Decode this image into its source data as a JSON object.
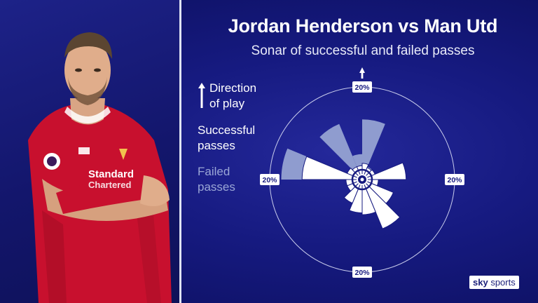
{
  "header": {
    "title": "Jordan Henderson vs Man Utd",
    "subtitle": "Sonar of successful and failed passes"
  },
  "legend": {
    "direction_line1": "Direction",
    "direction_line2": "of play",
    "successful_line1": "Successful",
    "successful_line2": "passes",
    "failed_line1": "Failed",
    "failed_line2": "passes"
  },
  "brand": {
    "sky": "sky",
    "sports": "sports"
  },
  "colors": {
    "successful": "#ffffff",
    "failed": "#8f9ccf",
    "background": "#161a80"
  },
  "chart_data": {
    "type": "polar-bar",
    "axis_label": "20%",
    "max_percent": 20,
    "sectors": 16,
    "sector_start_angles_deg": [
      0,
      22.5,
      45,
      67.5,
      90,
      112.5,
      135,
      157.5,
      180,
      202.5,
      225,
      247.5,
      270,
      292.5,
      315,
      337.5
    ],
    "successful_percent": [
      3.5,
      2.8,
      3,
      9.5,
      3.5,
      7.3,
      11.5,
      7.6,
      7.2,
      5.5,
      3.5,
      3.5,
      13,
      3.5,
      3,
      3
    ],
    "failed_percent": [
      13,
      3,
      3,
      9.5,
      3.5,
      7.3,
      11.5,
      7.6,
      7.2,
      5.5,
      3.5,
      3.5,
      17.5,
      3.5,
      13,
      5.5
    ]
  }
}
